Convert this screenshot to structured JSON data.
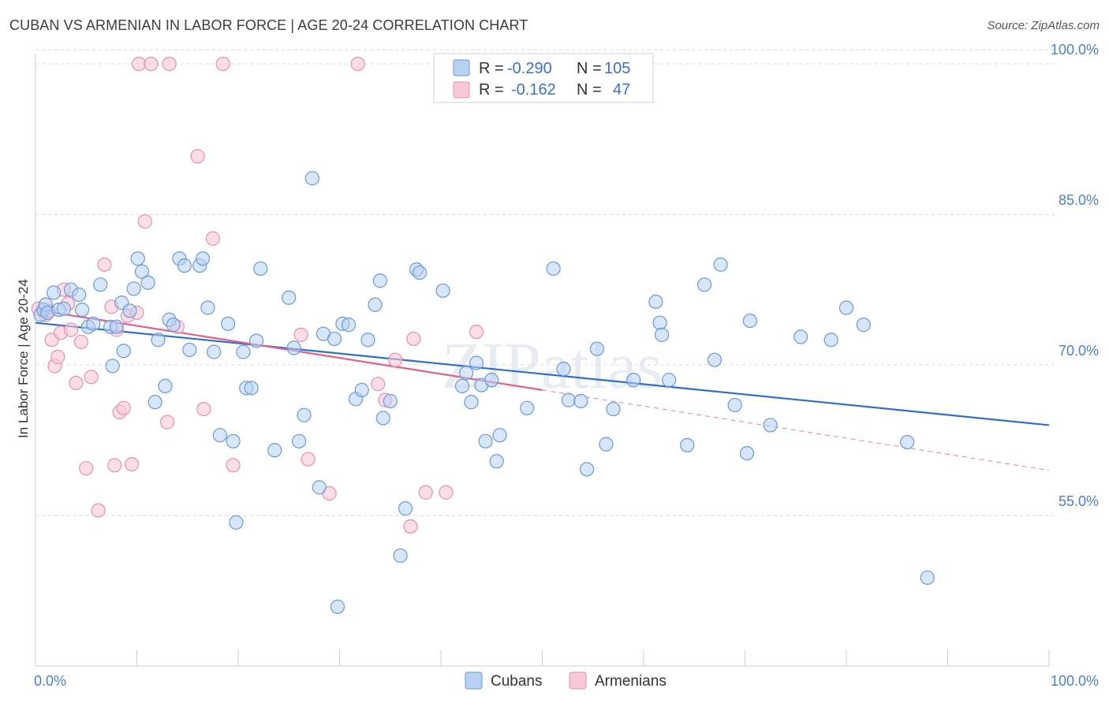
{
  "title": "CUBAN VS ARMENIAN IN LABOR FORCE | AGE 20-24 CORRELATION CHART",
  "source": "Source: ZipAtlas.com",
  "watermark": "ZIPatlas",
  "colors": {
    "cubans_fill": "#b8d2f4",
    "cubans_stroke": "#6a9ad8",
    "cubans_line": "#2f6fcc",
    "armenians_fill": "#f8c8d8",
    "armenians_stroke": "#e890b0",
    "armenians_line": "#e0608e",
    "tick_text": "#4a7fd0",
    "grid": "#d8d8d8"
  },
  "legend": {
    "rows": [
      {
        "r_label": "R = ",
        "r_value": "-0.290",
        "n_label": "N = ",
        "n_value": "105"
      },
      {
        "r_label": "R = ",
        "r_value": "-0.162",
        "n_label": "N = ",
        "n_value": "47"
      }
    ]
  },
  "bottom_legend": [
    "Cubans",
    "Armenians"
  ],
  "chart_data": {
    "type": "scatter",
    "title": "CUBAN VS ARMENIAN IN LABOR FORCE | AGE 20-24 CORRELATION CHART",
    "xlabel": "",
    "ylabel": "In Labor Force | Age 20-24",
    "xlim": [
      0,
      100
    ],
    "ylim": [
      40,
      101.5
    ],
    "x_tick_labels": [
      "0.0%",
      "100.0%"
    ],
    "y_ticks": [
      55,
      70,
      85,
      100
    ],
    "y_tick_labels": [
      "55.0%",
      "70.0%",
      "85.0%",
      "100.0%"
    ],
    "grid": true,
    "series": [
      {
        "name": "Cubans",
        "R": -0.29,
        "N": 105,
        "trend": {
          "x": [
            0,
            100
          ],
          "y": [
            74.2,
            64.0
          ]
        },
        "points": [
          [
            0.5,
            75.0
          ],
          [
            0.8,
            75.5
          ],
          [
            1.0,
            76.0
          ],
          [
            1.2,
            75.2
          ],
          [
            1.8,
            77.2
          ],
          [
            2.3,
            75.5
          ],
          [
            2.8,
            75.6
          ],
          [
            3.5,
            77.5
          ],
          [
            4.3,
            77.0
          ],
          [
            4.6,
            75.5
          ],
          [
            5.2,
            73.8
          ],
          [
            5.7,
            74.1
          ],
          [
            6.4,
            78.0
          ],
          [
            7.4,
            73.8
          ],
          [
            7.6,
            69.9
          ],
          [
            8.0,
            73.8
          ],
          [
            8.5,
            76.2
          ],
          [
            8.7,
            71.4
          ],
          [
            9.3,
            75.4
          ],
          [
            9.7,
            77.6
          ],
          [
            10.1,
            80.6
          ],
          [
            10.5,
            79.3
          ],
          [
            11.1,
            78.2
          ],
          [
            11.8,
            66.3
          ],
          [
            12.1,
            72.5
          ],
          [
            12.8,
            67.9
          ],
          [
            13.2,
            74.5
          ],
          [
            13.6,
            74.0
          ],
          [
            14.2,
            80.6
          ],
          [
            14.7,
            79.9
          ],
          [
            15.2,
            71.5
          ],
          [
            16.2,
            79.9
          ],
          [
            16.5,
            80.6
          ],
          [
            17.0,
            75.7
          ],
          [
            17.6,
            71.3
          ],
          [
            18.2,
            63.0
          ],
          [
            19.0,
            74.1
          ],
          [
            19.5,
            62.4
          ],
          [
            19.8,
            54.3
          ],
          [
            20.5,
            71.3
          ],
          [
            20.8,
            67.7
          ],
          [
            21.3,
            67.7
          ],
          [
            21.8,
            72.4
          ],
          [
            22.2,
            79.6
          ],
          [
            23.6,
            61.5
          ],
          [
            25.0,
            76.7
          ],
          [
            25.5,
            71.7
          ],
          [
            26.0,
            62.4
          ],
          [
            26.5,
            65.0
          ],
          [
            27.3,
            88.6
          ],
          [
            28.0,
            57.8
          ],
          [
            28.4,
            73.1
          ],
          [
            29.5,
            72.6
          ],
          [
            29.8,
            45.9
          ],
          [
            30.3,
            74.1
          ],
          [
            30.9,
            74.0
          ],
          [
            31.6,
            66.6
          ],
          [
            32.2,
            67.5
          ],
          [
            32.8,
            72.5
          ],
          [
            33.5,
            76.0
          ],
          [
            34.0,
            78.4
          ],
          [
            34.3,
            64.7
          ],
          [
            35.0,
            66.4
          ],
          [
            36.0,
            51.0
          ],
          [
            36.5,
            55.7
          ],
          [
            37.6,
            79.5
          ],
          [
            37.9,
            79.2
          ],
          [
            40.2,
            77.4
          ],
          [
            42.1,
            67.9
          ],
          [
            42.5,
            69.2
          ],
          [
            43.0,
            66.3
          ],
          [
            43.5,
            70.2
          ],
          [
            44.0,
            68.0
          ],
          [
            44.4,
            62.4
          ],
          [
            45.0,
            68.5
          ],
          [
            45.5,
            60.4
          ],
          [
            45.8,
            63.0
          ],
          [
            48.5,
            65.7
          ],
          [
            51.1,
            79.6
          ],
          [
            52.1,
            69.6
          ],
          [
            52.6,
            66.5
          ],
          [
            53.8,
            66.4
          ],
          [
            54.4,
            59.6
          ],
          [
            55.4,
            71.6
          ],
          [
            56.3,
            62.1
          ],
          [
            57.0,
            65.6
          ],
          [
            59.0,
            68.5
          ],
          [
            61.2,
            76.3
          ],
          [
            61.6,
            74.2
          ],
          [
            61.8,
            73.0
          ],
          [
            62.5,
            68.5
          ],
          [
            64.3,
            62.0
          ],
          [
            66.0,
            78.0
          ],
          [
            67.0,
            70.5
          ],
          [
            67.6,
            80.0
          ],
          [
            69.0,
            66.0
          ],
          [
            70.2,
            61.2
          ],
          [
            70.5,
            74.4
          ],
          [
            72.5,
            64.0
          ],
          [
            75.5,
            72.8
          ],
          [
            78.5,
            72.5
          ],
          [
            80.0,
            75.7
          ],
          [
            81.7,
            74.0
          ],
          [
            86.0,
            62.3
          ],
          [
            88.0,
            48.8
          ]
        ]
      },
      {
        "name": "Armenians",
        "R": -0.162,
        "N": 47,
        "trend": {
          "x": [
            0,
            50
          ],
          "y": [
            75.5,
            67.5
          ]
        },
        "trend_extension": {
          "x": [
            50,
            100
          ],
          "y": [
            67.5,
            59.5
          ]
        },
        "points": [
          [
            0.3,
            75.6
          ],
          [
            1.0,
            75.0
          ],
          [
            1.3,
            75.4
          ],
          [
            1.6,
            72.5
          ],
          [
            1.9,
            69.9
          ],
          [
            2.2,
            70.8
          ],
          [
            2.5,
            73.2
          ],
          [
            2.8,
            77.5
          ],
          [
            3.2,
            76.1
          ],
          [
            3.5,
            73.5
          ],
          [
            4.0,
            68.2
          ],
          [
            4.5,
            72.3
          ],
          [
            5.0,
            59.7
          ],
          [
            5.5,
            68.8
          ],
          [
            6.2,
            55.5
          ],
          [
            6.8,
            80.0
          ],
          [
            7.5,
            75.8
          ],
          [
            7.8,
            60.0
          ],
          [
            8.0,
            73.5
          ],
          [
            8.3,
            65.3
          ],
          [
            8.7,
            65.7
          ],
          [
            9.1,
            74.9
          ],
          [
            9.5,
            60.1
          ],
          [
            10.0,
            75.2
          ],
          [
            10.2,
            100.0
          ],
          [
            10.8,
            84.3
          ],
          [
            11.4,
            100.0
          ],
          [
            13.0,
            64.3
          ],
          [
            13.2,
            100.0
          ],
          [
            14.0,
            73.8
          ],
          [
            16.0,
            90.8
          ],
          [
            16.6,
            65.6
          ],
          [
            17.5,
            82.6
          ],
          [
            18.5,
            100.0
          ],
          [
            19.5,
            60.0
          ],
          [
            26.2,
            73.0
          ],
          [
            26.9,
            60.6
          ],
          [
            29.0,
            57.2
          ],
          [
            31.8,
            100.0
          ],
          [
            33.8,
            68.1
          ],
          [
            34.5,
            66.5
          ],
          [
            35.5,
            70.5
          ],
          [
            37.0,
            53.9
          ],
          [
            37.3,
            72.6
          ],
          [
            38.5,
            57.3
          ],
          [
            40.5,
            57.3
          ],
          [
            43.5,
            73.3
          ]
        ]
      }
    ]
  }
}
